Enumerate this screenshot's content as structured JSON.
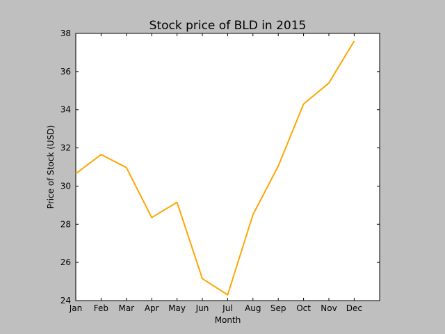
{
  "chart_data": {
    "type": "line",
    "title": "Stock price of BLD in 2015",
    "xlabel": "Month",
    "ylabel": "Price of Stock (USD)",
    "categories": [
      "Jan",
      "Feb",
      "Mar",
      "Apr",
      "May",
      "Jun",
      "Jul",
      "Aug",
      "Sep",
      "Oct",
      "Nov",
      "Dec"
    ],
    "xlim": [
      0,
      12
    ],
    "ylim": [
      24,
      38
    ],
    "yticks": [
      24,
      26,
      28,
      30,
      32,
      34,
      36,
      38
    ],
    "grid": false,
    "legend": "none",
    "series": [
      {
        "color": "#ffa500",
        "values": [
          30.65,
          31.65,
          30.97,
          28.35,
          29.15,
          25.15,
          24.3,
          28.5,
          31.05,
          34.3,
          35.4,
          37.6
        ]
      }
    ]
  }
}
